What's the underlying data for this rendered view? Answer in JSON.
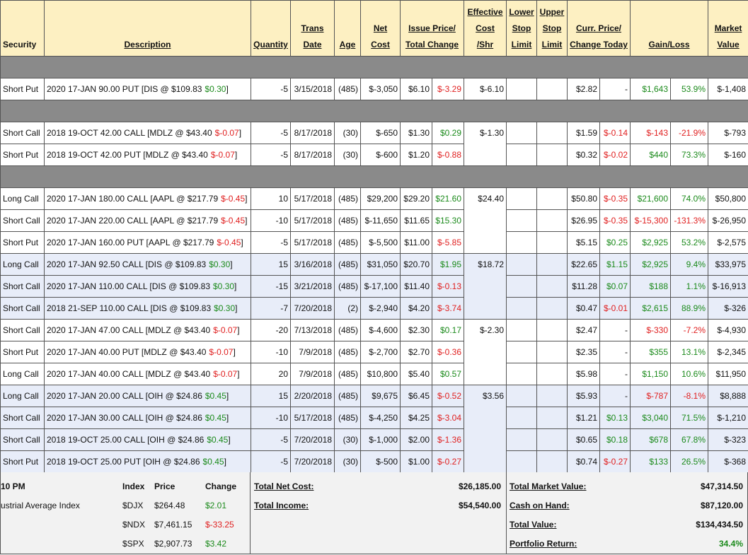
{
  "table": {
    "headers": [
      {
        "lines": [
          "Security"
        ],
        "plain": true
      },
      {
        "lines": [
          "Description"
        ]
      },
      {
        "lines": [
          "Quantity"
        ]
      },
      {
        "lines": [
          "Trans",
          "Date"
        ]
      },
      {
        "lines": [
          "Age"
        ]
      },
      {
        "lines": [
          "Net",
          "Cost"
        ]
      },
      {
        "lines": [
          "Issue Price/",
          "Total Change"
        ],
        "span": 2
      },
      {
        "lines": [
          "Effective",
          "Cost",
          "/Shr"
        ]
      },
      {
        "lines": [
          "Lower",
          "Stop",
          "Limit"
        ]
      },
      {
        "lines": [
          "Upper",
          "Stop",
          "Limit"
        ]
      },
      {
        "lines": [
          "Curr. Price/",
          "Change Today"
        ],
        "span": 2
      },
      {
        "lines": [
          "Gain/Loss"
        ],
        "span": 2
      },
      {
        "lines": [
          "Market",
          "Value"
        ]
      }
    ],
    "groups": [
      {
        "separator": true,
        "effective_cost": "$-6.10",
        "rows": [
          {
            "security": "Short Put",
            "description": [
              "2020 17-JAN 90.00 PUT [DIS @ $109.83",
              "$0.30",
              "]"
            ],
            "quantity": "-5",
            "date": "3/15/2018",
            "age": "(485)",
            "net_cost": "$-3,050",
            "issue_price": "$6.10",
            "total_change": "$-3.29",
            "curr_price": "$2.82",
            "change_today": "-",
            "gain_loss": "$1,643",
            "gain_pct": "53.9%",
            "market_value": "$-1,408"
          }
        ]
      },
      {
        "separator": true,
        "effective_cost": "$-1.30",
        "rows": [
          {
            "security": "Short Call",
            "description": [
              "2018 19-OCT 42.00 CALL [MDLZ @ $43.40",
              "$-0.07",
              "]"
            ],
            "quantity": "-5",
            "date": "8/17/2018",
            "age": "(30)",
            "net_cost": "$-650",
            "issue_price": "$1.30",
            "total_change": "$0.29",
            "curr_price": "$1.59",
            "change_today": "$-0.14",
            "gain_loss": "$-143",
            "gain_pct": "-21.9%",
            "market_value": "$-793"
          },
          {
            "security": "Short Put",
            "description": [
              "2018 19-OCT 42.00 PUT [MDLZ @ $43.40",
              "$-0.07",
              "]"
            ],
            "quantity": "-5",
            "date": "8/17/2018",
            "age": "(30)",
            "net_cost": "$-600",
            "issue_price": "$1.20",
            "total_change": "$-0.88",
            "curr_price": "$0.32",
            "change_today": "$-0.02",
            "gain_loss": "$440",
            "gain_pct": "73.3%",
            "market_value": "$-160"
          }
        ]
      },
      {
        "separator": true,
        "effective_cost": "$24.40",
        "rows": [
          {
            "security": "Long Call",
            "description": [
              "2020 17-JAN 180.00 CALL [AAPL @ $217.79",
              "$-0.45",
              "]"
            ],
            "quantity": "10",
            "date": "5/17/2018",
            "age": "(485)",
            "net_cost": "$29,200",
            "issue_price": "$29.20",
            "total_change": "$21.60",
            "curr_price": "$50.80",
            "change_today": "$-0.35",
            "gain_loss": "$21,600",
            "gain_pct": "74.0%",
            "market_value": "$50,800"
          },
          {
            "security": "Short Call",
            "description": [
              "2020 17-JAN 220.00 CALL [AAPL @ $217.79",
              "$-0.45",
              "]"
            ],
            "quantity": "-10",
            "date": "5/17/2018",
            "age": "(485)",
            "net_cost": "$-11,650",
            "issue_price": "$11.65",
            "total_change": "$15.30",
            "curr_price": "$26.95",
            "change_today": "$-0.35",
            "gain_loss": "$-15,300",
            "gain_pct": "-131.3%",
            "market_value": "$-26,950"
          },
          {
            "security": "Short Put",
            "description": [
              "2020 17-JAN 160.00 PUT [AAPL @ $217.79",
              "$-0.45",
              "]"
            ],
            "quantity": "-5",
            "date": "5/17/2018",
            "age": "(485)",
            "net_cost": "$-5,500",
            "issue_price": "$11.00",
            "total_change": "$-5.85",
            "curr_price": "$5.15",
            "change_today": "$0.25",
            "gain_loss": "$2,925",
            "gain_pct": "53.2%",
            "market_value": "$-2,575"
          }
        ]
      },
      {
        "shaded": true,
        "effective_cost": "$18.72",
        "rows": [
          {
            "security": "Long Call",
            "description": [
              "2020 17-JAN 92.50 CALL [DIS @ $109.83",
              "$0.30",
              "]"
            ],
            "quantity": "15",
            "date": "3/16/2018",
            "age": "(485)",
            "net_cost": "$31,050",
            "issue_price": "$20.70",
            "total_change": "$1.95",
            "curr_price": "$22.65",
            "change_today": "$1.15",
            "gain_loss": "$2,925",
            "gain_pct": "9.4%",
            "market_value": "$33,975"
          },
          {
            "security": "Short Call",
            "description": [
              "2020 17-JAN 110.00 CALL [DIS @ $109.83",
              "$0.30",
              "]"
            ],
            "quantity": "-15",
            "date": "3/21/2018",
            "age": "(485)",
            "net_cost": "$-17,100",
            "issue_price": "$11.40",
            "total_change": "$-0.13",
            "curr_price": "$11.28",
            "change_today": "$0.07",
            "gain_loss": "$188",
            "gain_pct": "1.1%",
            "market_value": "$-16,913"
          },
          {
            "security": "Short Call",
            "description": [
              "2018 21-SEP 110.00 CALL [DIS @ $109.83",
              "$0.30",
              "]"
            ],
            "quantity": "-7",
            "date": "7/20/2018",
            "age": "(2)",
            "net_cost": "$-2,940",
            "issue_price": "$4.20",
            "total_change": "$-3.74",
            "curr_price": "$0.47",
            "change_today": "$-0.01",
            "gain_loss": "$2,615",
            "gain_pct": "88.9%",
            "market_value": "$-326"
          }
        ]
      },
      {
        "effective_cost": "$-2.30",
        "rows": [
          {
            "security": "Short Call",
            "description": [
              "2020 17-JAN 47.00 CALL [MDLZ @ $43.40",
              "$-0.07",
              "]"
            ],
            "quantity": "-20",
            "date": "7/13/2018",
            "age": "(485)",
            "net_cost": "$-4,600",
            "issue_price": "$2.30",
            "total_change": "$0.17",
            "curr_price": "$2.47",
            "change_today": "-",
            "gain_loss": "$-330",
            "gain_pct": "-7.2%",
            "market_value": "$-4,930"
          },
          {
            "security": "Short Put",
            "description": [
              "2020 17-JAN 40.00 PUT [MDLZ @ $43.40",
              "$-0.07",
              "]"
            ],
            "quantity": "-10",
            "date": "7/9/2018",
            "age": "(485)",
            "net_cost": "$-2,700",
            "issue_price": "$2.70",
            "total_change": "$-0.36",
            "curr_price": "$2.35",
            "change_today": "-",
            "gain_loss": "$355",
            "gain_pct": "13.1%",
            "market_value": "$-2,345"
          },
          {
            "security": "Long Call",
            "description": [
              "2020 17-JAN 40.00 CALL [MDLZ @ $43.40",
              "$-0.07",
              "]"
            ],
            "quantity": "20",
            "date": "7/9/2018",
            "age": "(485)",
            "net_cost": "$10,800",
            "issue_price": "$5.40",
            "total_change": "$0.57",
            "curr_price": "$5.98",
            "change_today": "-",
            "gain_loss": "$1,150",
            "gain_pct": "10.6%",
            "market_value": "$11,950"
          }
        ]
      },
      {
        "shaded": true,
        "effective_cost": "$3.56",
        "rows": [
          {
            "security": "Long Call",
            "description": [
              "2020 17-JAN 20.00 CALL [OIH @ $24.86",
              "$0.45",
              "]"
            ],
            "quantity": "15",
            "date": "2/20/2018",
            "age": "(485)",
            "net_cost": "$9,675",
            "issue_price": "$6.45",
            "total_change": "$-0.52",
            "curr_price": "$5.93",
            "change_today": "-",
            "gain_loss": "$-787",
            "gain_pct": "-8.1%",
            "market_value": "$8,888"
          },
          {
            "security": "Short Call",
            "description": [
              "2020 17-JAN 30.00 CALL [OIH @ $24.86",
              "$0.45",
              "]"
            ],
            "quantity": "-10",
            "date": "5/17/2018",
            "age": "(485)",
            "net_cost": "$-4,250",
            "issue_price": "$4.25",
            "total_change": "$-3.04",
            "curr_price": "$1.21",
            "change_today": "$0.13",
            "gain_loss": "$3,040",
            "gain_pct": "71.5%",
            "market_value": "$-1,210"
          },
          {
            "security": "Short Call",
            "description": [
              "2018 19-OCT 25.00 CALL [OIH @ $24.86",
              "$0.45",
              "]"
            ],
            "quantity": "-5",
            "date": "7/20/2018",
            "age": "(30)",
            "net_cost": "$-1,000",
            "issue_price": "$2.00",
            "total_change": "$-1.36",
            "curr_price": "$0.65",
            "change_today": "$0.18",
            "gain_loss": "$678",
            "gain_pct": "67.8%",
            "market_value": "$-323"
          },
          {
            "security": "Short Put",
            "description": [
              "2018 19-OCT 25.00 PUT [OIH @ $24.86",
              "$0.45",
              "]"
            ],
            "quantity": "-5",
            "date": "7/20/2018",
            "age": "(30)",
            "net_cost": "$-500",
            "issue_price": "$1.00",
            "total_change": "$-0.27",
            "curr_price": "$0.74",
            "change_today": "$-0.27",
            "gain_loss": "$133",
            "gain_pct": "26.5%",
            "market_value": "$-368"
          }
        ]
      }
    ]
  },
  "footer": {
    "time": "10 PM",
    "index_name": "ustrial Average Index",
    "index_header": [
      "Index",
      "Price",
      "Change"
    ],
    "indices": [
      [
        "$DJX",
        "$264.48",
        "$2.01"
      ],
      [
        "$NDX",
        "$7,461.15",
        "$-33.25"
      ],
      [
        "$SPX",
        "$2,907.73",
        "$3.42"
      ]
    ],
    "totals_left": [
      {
        "label": "Total Net Cost:",
        "value": "$26,185.00"
      },
      {
        "label": "Total Income:",
        "value": "$54,540.00"
      }
    ],
    "totals_right": [
      {
        "label": "Total Market Value:",
        "value": "$47,314.50"
      },
      {
        "label": "Cash on Hand:",
        "value": "$87,120.00"
      },
      {
        "label": "Total Value:",
        "value": "$134,434.50"
      },
      {
        "label": "Portfolio Return:",
        "value": "34.4%",
        "signed": true
      }
    ]
  }
}
